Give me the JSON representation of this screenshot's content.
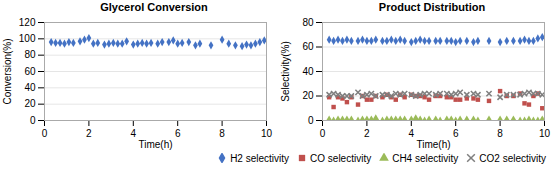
{
  "chart_data": [
    {
      "type": "scatter",
      "title": "Glycerol Conversion",
      "xlabel": "Time(h)",
      "ylabel": "Conversion(%)",
      "xlim": [
        0,
        10
      ],
      "ylim": [
        0,
        120
      ],
      "xticks": [
        0,
        2,
        4,
        6,
        8,
        10
      ],
      "yticks": [
        0,
        20,
        40,
        60,
        80,
        100,
        120
      ],
      "grid": true,
      "color": "#4472C4",
      "marker": "diamond",
      "x": [
        0.3,
        0.5,
        0.7,
        0.9,
        1.1,
        1.3,
        1.6,
        1.8,
        2.0,
        2.2,
        2.4,
        2.7,
        2.9,
        3.1,
        3.3,
        3.5,
        3.7,
        4.0,
        4.2,
        4.4,
        4.6,
        4.8,
        5.1,
        5.3,
        5.6,
        5.8,
        6.0,
        6.2,
        6.5,
        6.8,
        7.0,
        7.5,
        8.0,
        8.3,
        8.6,
        8.9,
        9.1,
        9.3,
        9.5,
        9.7,
        9.9
      ],
      "values": [
        96,
        95,
        95,
        94,
        96,
        95,
        97,
        99,
        101,
        94,
        95,
        93,
        94,
        95,
        94,
        94,
        97,
        93,
        94,
        95,
        94,
        95,
        94,
        96,
        96,
        98,
        94,
        95,
        96,
        92,
        94,
        92,
        99,
        94,
        92,
        91,
        93,
        92,
        94,
        96,
        98
      ]
    },
    {
      "type": "scatter",
      "title": "Product Distribution",
      "xlabel": "Time(h)",
      "ylabel": "Selectivity(%)",
      "xlim": [
        0,
        10
      ],
      "ylim": [
        0,
        80
      ],
      "xticks": [
        0,
        2,
        4,
        6,
        8,
        10
      ],
      "yticks": [
        0,
        20,
        40,
        60,
        80
      ],
      "grid": true,
      "legend": "lower right",
      "x": [
        0.3,
        0.5,
        0.7,
        0.9,
        1.1,
        1.3,
        1.6,
        1.8,
        2.0,
        2.2,
        2.4,
        2.7,
        2.9,
        3.1,
        3.3,
        3.5,
        3.7,
        4.0,
        4.2,
        4.4,
        4.6,
        4.8,
        5.1,
        5.3,
        5.6,
        5.8,
        6.0,
        6.2,
        6.5,
        6.8,
        7.0,
        7.5,
        8.0,
        8.3,
        8.6,
        8.9,
        9.1,
        9.3,
        9.5,
        9.7,
        9.9
      ],
      "series": [
        {
          "name": "H2 selectivity",
          "color": "#4472C4",
          "marker": "diamond",
          "values": [
            66,
            65,
            66,
            65,
            66,
            65,
            65,
            66,
            65,
            65,
            66,
            65,
            65,
            66,
            65,
            66,
            65,
            64,
            65,
            66,
            65,
            65,
            65,
            65,
            65,
            65,
            64,
            65,
            65,
            64,
            65,
            65,
            64,
            65,
            65,
            65,
            66,
            65,
            65,
            67,
            68
          ]
        },
        {
          "name": "CO selectivity",
          "color": "#C0504D",
          "marker": "square",
          "values": [
            19,
            11,
            19,
            18,
            15,
            19,
            13,
            20,
            17,
            17,
            20,
            19,
            21,
            19,
            17,
            21,
            19,
            21,
            20,
            20,
            19,
            17,
            20,
            20,
            19,
            19,
            17,
            17,
            18,
            18,
            17,
            16,
            24,
            20,
            20,
            22,
            14,
            13,
            20,
            22,
            10
          ]
        },
        {
          "name": "CH4 selectivity",
          "color": "#9BBB59",
          "marker": "triangle",
          "values": [
            1,
            0,
            1,
            1,
            1,
            1,
            0,
            1,
            1,
            1,
            2,
            0,
            1,
            1,
            1,
            1,
            1,
            1,
            2,
            1,
            0,
            1,
            1,
            0,
            1,
            1,
            0,
            1,
            1,
            1,
            0,
            1,
            1,
            1,
            1,
            0,
            0,
            1,
            0,
            0,
            1
          ]
        },
        {
          "name": "CO2 selectivity",
          "color": "#7F7F7F",
          "marker": "x",
          "values": [
            21,
            22,
            21,
            20,
            20,
            20,
            23,
            20,
            21,
            22,
            20,
            21,
            21,
            20,
            22,
            21,
            22,
            21,
            20,
            21,
            22,
            22,
            21,
            22,
            22,
            21,
            22,
            23,
            21,
            22,
            21,
            22,
            19,
            21,
            21,
            21,
            22,
            23,
            22,
            22,
            21
          ]
        }
      ]
    }
  ]
}
